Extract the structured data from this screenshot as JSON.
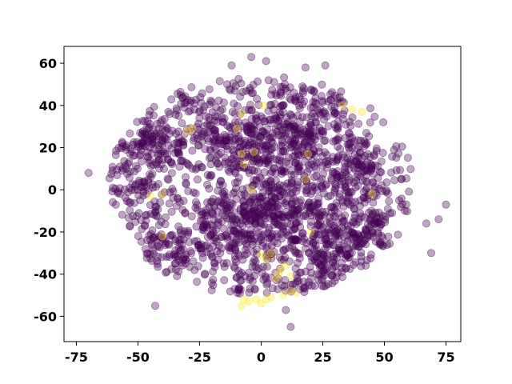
{
  "chart_data": {
    "type": "scatter",
    "title": "",
    "xlabel": "",
    "ylabel": "",
    "xlim": [
      -80,
      81
    ],
    "ylim": [
      -72,
      68
    ],
    "xticks": [
      "-75",
      "-50",
      "-25",
      "0",
      "25",
      "50",
      "75"
    ],
    "xtick_values": [
      -75,
      -50,
      -25,
      0,
      25,
      50,
      75
    ],
    "yticks": [
      "-60",
      "-40",
      "-20",
      "0",
      "20",
      "40",
      "60"
    ],
    "ytick_values": [
      -60,
      -40,
      -20,
      0,
      20,
      40,
      60
    ],
    "grid": false,
    "legend": "none",
    "colors": {
      "class_0": "#440154",
      "class_1": "#fde725"
    },
    "point_alpha": 0.35,
    "clusters_class_0": [
      {
        "cx": -65,
        "cy": 15,
        "sx": 5,
        "sy": 6,
        "n": 80
      },
      {
        "cx": -43,
        "cy": 22,
        "sx": 8,
        "sy": 8,
        "n": 170
      },
      {
        "cx": -52,
        "cy": -5,
        "sx": 6,
        "sy": 10,
        "n": 90
      },
      {
        "cx": -40,
        "cy": -28,
        "sx": 7,
        "sy": 7,
        "n": 80
      },
      {
        "cx": -15,
        "cy": -15,
        "sx": 13,
        "sy": 13,
        "n": 330
      },
      {
        "cx": -15,
        "cy": 25,
        "sx": 10,
        "sy": 10,
        "n": 160
      },
      {
        "cx": 12,
        "cy": 25,
        "sx": 14,
        "sy": 11,
        "n": 360
      },
      {
        "cx": 10,
        "cy": -10,
        "sx": 14,
        "sy": 14,
        "n": 380
      },
      {
        "cx": 30,
        "cy": -30,
        "sx": 10,
        "sy": 8,
        "n": 200
      },
      {
        "cx": 40,
        "cy": 10,
        "sx": 10,
        "sy": 10,
        "n": 160
      },
      {
        "cx": 45,
        "cy": -15,
        "sx": 7,
        "sy": 10,
        "n": 100
      },
      {
        "cx": -10,
        "cy": 48,
        "sx": 4,
        "sy": 3,
        "n": 14
      },
      {
        "cx": 12,
        "cy": 48,
        "sx": 3,
        "sy": 3,
        "n": 12
      },
      {
        "cx": -28,
        "cy": 42,
        "sx": 6,
        "sy": 3,
        "n": 24
      },
      {
        "cx": 28,
        "cy": 42,
        "sx": 6,
        "sy": 3,
        "n": 24
      },
      {
        "cx": -8,
        "cy": -45,
        "sx": 8,
        "sy": 4,
        "n": 35
      },
      {
        "cx": 20,
        "cy": -45,
        "sx": 10,
        "sy": 4,
        "n": 35
      }
    ],
    "points_class_0": [
      {
        "x": -12,
        "y": 59
      },
      {
        "x": -4,
        "y": 63
      },
      {
        "x": 2,
        "y": 61
      },
      {
        "x": 18,
        "y": 58
      },
      {
        "x": 26,
        "y": 59
      },
      {
        "x": 3,
        "y": 52
      },
      {
        "x": 67,
        "y": -16
      },
      {
        "x": 72,
        "y": -14
      },
      {
        "x": 75,
        "y": -7
      },
      {
        "x": 69,
        "y": -30
      },
      {
        "x": -43,
        "y": -55
      },
      {
        "x": 12,
        "y": -65
      },
      {
        "x": 10,
        "y": -57
      },
      {
        "x": -70,
        "y": 8
      },
      {
        "x": 57,
        "y": 5
      },
      {
        "x": 56,
        "y": -5
      }
    ],
    "points_class_1": [
      {
        "x": 33,
        "y": 40
      },
      {
        "x": 37,
        "y": 38
      },
      {
        "x": 41,
        "y": 37
      },
      {
        "x": 8,
        "y": -38
      },
      {
        "x": 7,
        "y": -40
      },
      {
        "x": 6,
        "y": -42
      },
      {
        "x": 10,
        "y": -36
      },
      {
        "x": 12,
        "y": -41
      },
      {
        "x": 2,
        "y": -33
      },
      {
        "x": 0,
        "y": -31
      },
      {
        "x": 4,
        "y": -30
      },
      {
        "x": -7,
        "y": -52
      },
      {
        "x": -8,
        "y": -55
      },
      {
        "x": -5,
        "y": -53
      },
      {
        "x": -2,
        "y": -52
      },
      {
        "x": 0,
        "y": -54
      },
      {
        "x": 2,
        "y": -52
      },
      {
        "x": 4,
        "y": -51
      },
      {
        "x": 9,
        "y": -50
      },
      {
        "x": 12,
        "y": -48
      },
      {
        "x": 14,
        "y": -49
      },
      {
        "x": -3,
        "y": 18
      },
      {
        "x": -8,
        "y": 17
      },
      {
        "x": -28,
        "y": 29
      },
      {
        "x": -30,
        "y": 28
      },
      {
        "x": -10,
        "y": 29
      },
      {
        "x": -7,
        "y": 12
      },
      {
        "x": 19,
        "y": 17
      },
      {
        "x": 18,
        "y": 5
      },
      {
        "x": -45,
        "y": -3
      },
      {
        "x": -40,
        "y": -2
      },
      {
        "x": 20,
        "y": -20
      },
      {
        "x": 45,
        "y": -2
      },
      {
        "x": -4,
        "y": 0
      },
      {
        "x": -40,
        "y": -22
      },
      {
        "x": 1,
        "y": 40
      },
      {
        "x": -8,
        "y": 36
      }
    ]
  }
}
